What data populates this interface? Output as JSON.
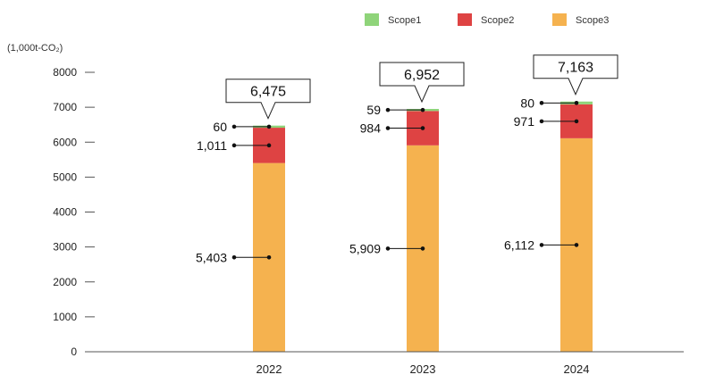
{
  "chart_data": {
    "type": "bar",
    "stacked": true,
    "unit_label": "(1,000t-CO₂)",
    "categories": [
      "2022",
      "2023",
      "2024"
    ],
    "series": [
      {
        "name": "Scope1",
        "color": "#8fd47a",
        "values": [
          60,
          59,
          80
        ],
        "value_labels": [
          "60",
          "59",
          "80"
        ]
      },
      {
        "name": "Scope2",
        "color": "#de4343",
        "values": [
          1011,
          984,
          971
        ],
        "value_labels": [
          "1,011",
          "984",
          "971"
        ]
      },
      {
        "name": "Scope3",
        "color": "#f5b24f",
        "values": [
          5403,
          5909,
          6112
        ],
        "value_labels": [
          "5,403",
          "5,909",
          "6,112"
        ]
      }
    ],
    "totals": [
      6475,
      6952,
      7163
    ],
    "total_labels": [
      "6,475",
      "6,952",
      "7,163"
    ],
    "ylim": [
      0,
      8000
    ],
    "yticks": [
      0,
      1000,
      2000,
      3000,
      4000,
      5000,
      6000,
      7000,
      8000
    ],
    "ytick_labels": [
      "0",
      "1000",
      "2000",
      "3000",
      "4000",
      "5000",
      "6000",
      "7000",
      "8000"
    ],
    "legend_position": "top-right",
    "grid": false
  }
}
